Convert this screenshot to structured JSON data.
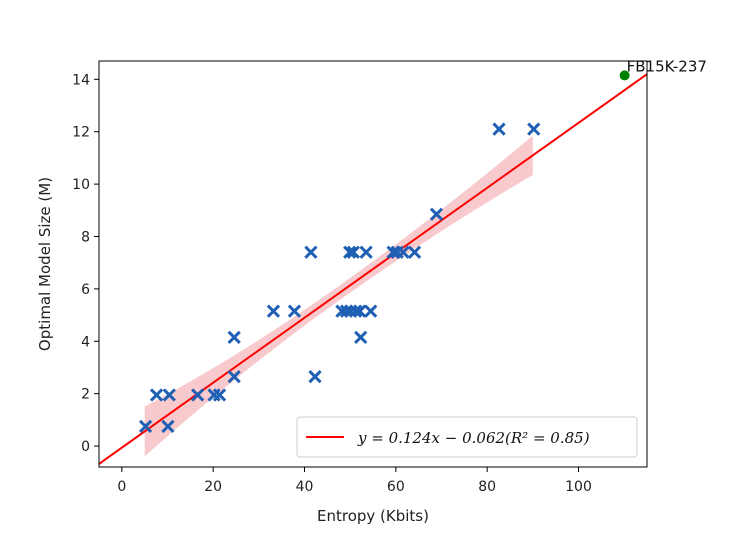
{
  "chart_data": {
    "type": "scatter",
    "xlabel": "Entropy (Kbits)",
    "ylabel": "Optimal Model Size (M)",
    "xlim": [
      -5,
      115
    ],
    "ylim": [
      -0.8,
      14.7
    ],
    "x_ticks": [
      0,
      20,
      40,
      60,
      80,
      100
    ],
    "y_ticks": [
      0,
      2,
      4,
      6,
      8,
      10,
      12,
      14
    ],
    "grid": false,
    "points": [
      {
        "x": 5.2,
        "y": 0.75
      },
      {
        "x": 10.1,
        "y": 0.75
      },
      {
        "x": 7.6,
        "y": 1.95
      },
      {
        "x": 10.4,
        "y": 1.95
      },
      {
        "x": 16.6,
        "y": 1.95
      },
      {
        "x": 20.2,
        "y": 1.95
      },
      {
        "x": 21.4,
        "y": 1.95
      },
      {
        "x": 24.6,
        "y": 2.65
      },
      {
        "x": 24.6,
        "y": 4.15
      },
      {
        "x": 33.2,
        "y": 5.15
      },
      {
        "x": 37.8,
        "y": 5.15
      },
      {
        "x": 41.4,
        "y": 7.4
      },
      {
        "x": 42.3,
        "y": 2.65
      },
      {
        "x": 48.2,
        "y": 5.15
      },
      {
        "x": 49.2,
        "y": 5.15
      },
      {
        "x": 50.1,
        "y": 5.15
      },
      {
        "x": 51.2,
        "y": 5.15
      },
      {
        "x": 52.1,
        "y": 5.15
      },
      {
        "x": 54.5,
        "y": 5.15
      },
      {
        "x": 49.9,
        "y": 7.4
      },
      {
        "x": 50.7,
        "y": 7.4
      },
      {
        "x": 53.5,
        "y": 7.4
      },
      {
        "x": 52.3,
        "y": 4.15
      },
      {
        "x": 59.4,
        "y": 7.4
      },
      {
        "x": 60.3,
        "y": 7.4
      },
      {
        "x": 61.6,
        "y": 7.4
      },
      {
        "x": 64.1,
        "y": 7.4
      },
      {
        "x": 68.9,
        "y": 8.85
      },
      {
        "x": 82.6,
        "y": 12.1
      },
      {
        "x": 90.2,
        "y": 12.1
      }
    ],
    "highlight_point": {
      "x": 110.1,
      "y": 14.15,
      "label": "FB15K-237",
      "color": "#008000"
    },
    "regression": {
      "slope": 0.124,
      "intercept": -0.062,
      "legend_label": "y = 0.124x − 0.062(R² = 0.85)",
      "color": "#ff0000",
      "ci_x_range": [
        5,
        90
      ],
      "ci_halfwidth_ends": [
        0.95,
        0.75
      ],
      "ci_halfwidth_mid": 0.28,
      "ci_color": "#f4a7ab"
    },
    "marker_color": "#1f5fb4",
    "legend_position": "lower-right"
  }
}
